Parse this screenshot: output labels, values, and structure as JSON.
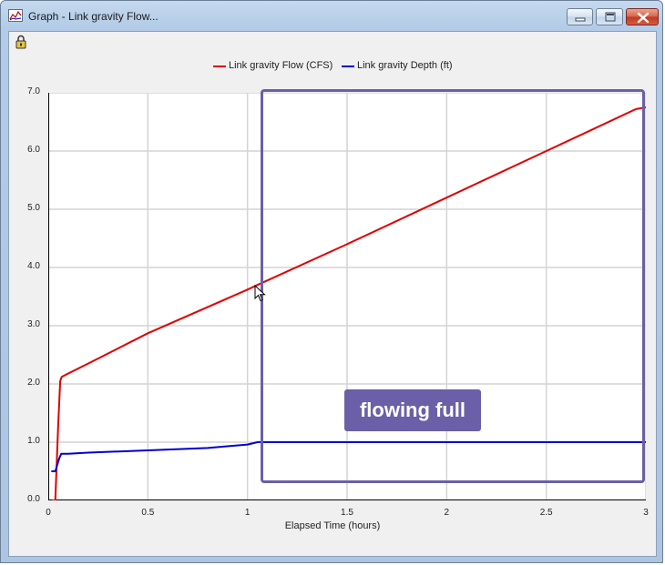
{
  "window": {
    "title": "Graph - Link gravity Flow...",
    "minimize_label": "minimize",
    "maximize_label": "maximize",
    "close_label": "close"
  },
  "toolbar": {
    "lock_icon": "lock-icon"
  },
  "legend": [
    {
      "label": "Link gravity Flow (CFS)",
      "color": "#e00000"
    },
    {
      "label": "Link gravity Depth (ft)",
      "color": "#0000d0"
    }
  ],
  "annotation": {
    "text": "flowing full",
    "color": "#6b5fa8"
  },
  "chart_data": {
    "type": "line",
    "xlabel": "Elapsed Time (hours)",
    "ylabel": "",
    "xlim": [
      0,
      3
    ],
    "ylim": [
      0,
      7
    ],
    "x_ticks": [
      "0",
      "0.5",
      "1",
      "1.5",
      "2",
      "2.5",
      "3"
    ],
    "y_ticks": [
      "0.0",
      "1.0",
      "2.0",
      "3.0",
      "4.0",
      "5.0",
      "6.0",
      "7.0"
    ],
    "grid": true,
    "legend_position": "top-center",
    "series": [
      {
        "name": "Link gravity Flow (CFS)",
        "color": "#e00000",
        "x": [
          0.02,
          0.035,
          0.05,
          0.06,
          0.067,
          0.1,
          0.2,
          0.5,
          1.0,
          1.05,
          1.5,
          2.0,
          2.5,
          2.95,
          3.0
        ],
        "y": [
          0.0,
          0.0,
          1.3,
          2.05,
          2.12,
          2.18,
          2.35,
          2.87,
          3.62,
          3.7,
          4.4,
          5.2,
          6.0,
          6.72,
          6.75
        ]
      },
      {
        "name": "Link gravity Depth (ft)",
        "color": "#0000d0",
        "x": [
          0.015,
          0.035,
          0.055,
          0.065,
          0.1,
          0.2,
          0.5,
          0.8,
          1.0,
          1.05,
          1.5,
          2.0,
          2.5,
          3.0
        ],
        "y": [
          0.5,
          0.5,
          0.72,
          0.8,
          0.8,
          0.82,
          0.86,
          0.9,
          0.96,
          1.0,
          1.0,
          1.0,
          1.0,
          1.0
        ]
      }
    ]
  }
}
